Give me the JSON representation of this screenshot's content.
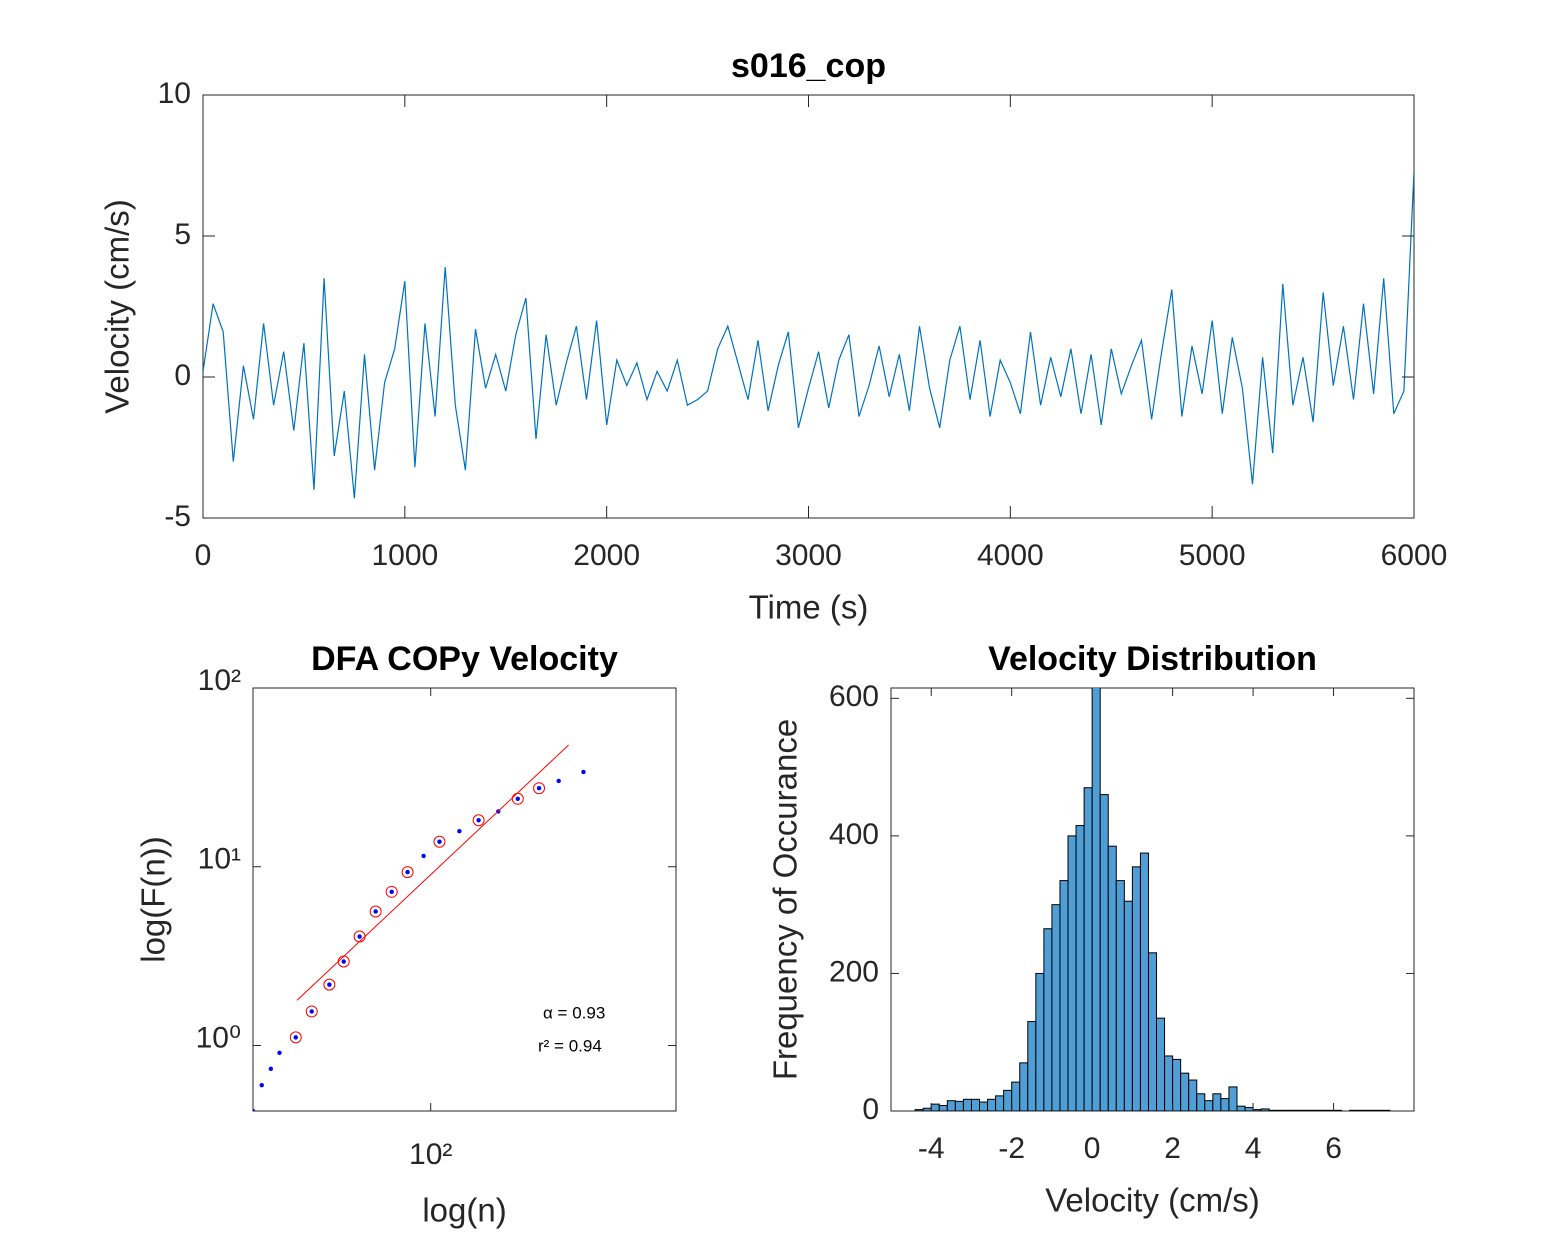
{
  "chart_data": [
    {
      "type": "line",
      "title": "s016_cop",
      "xlabel": "Time (s)",
      "ylabel": "Velocity (cm/s)",
      "color": "#0072bd",
      "xlim": [
        0,
        6000
      ],
      "ylim": [
        -5,
        10
      ],
      "xticks": [
        0,
        1000,
        2000,
        3000,
        4000,
        5000,
        6000
      ],
      "yticks": [
        -5,
        0,
        5,
        10
      ],
      "x": [
        0,
        50,
        100,
        150,
        200,
        250,
        300,
        350,
        400,
        450,
        500,
        550,
        600,
        650,
        700,
        750,
        800,
        850,
        900,
        950,
        1000,
        1050,
        1100,
        1150,
        1200,
        1250,
        1300,
        1350,
        1400,
        1450,
        1500,
        1550,
        1600,
        1650,
        1700,
        1750,
        1800,
        1850,
        1900,
        1950,
        2000,
        2050,
        2100,
        2150,
        2200,
        2250,
        2300,
        2350,
        2400,
        2450,
        2500,
        2550,
        2600,
        2650,
        2700,
        2750,
        2800,
        2850,
        2900,
        2950,
        3000,
        3050,
        3100,
        3150,
        3200,
        3250,
        3300,
        3350,
        3400,
        3450,
        3500,
        3550,
        3600,
        3650,
        3700,
        3750,
        3800,
        3850,
        3900,
        3950,
        4000,
        4050,
        4100,
        4150,
        4200,
        4250,
        4300,
        4350,
        4400,
        4450,
        4500,
        4550,
        4600,
        4650,
        4700,
        4750,
        4800,
        4850,
        4900,
        4950,
        5000,
        5050,
        5100,
        5150,
        5200,
        5250,
        5300,
        5350,
        5400,
        5450,
        5500,
        5550,
        5600,
        5650,
        5700,
        5750,
        5800,
        5850,
        5900,
        5950,
        6000
      ],
      "values": [
        0.2,
        2.6,
        1.6,
        -3.0,
        0.4,
        -1.5,
        1.9,
        -1.0,
        0.9,
        -1.9,
        1.2,
        -4.0,
        3.5,
        -2.8,
        -0.5,
        -4.3,
        0.8,
        -3.3,
        -0.2,
        1.0,
        3.4,
        -3.2,
        1.9,
        -1.4,
        3.9,
        -1.0,
        -3.3,
        1.7,
        -0.4,
        0.8,
        -0.5,
        1.5,
        2.8,
        -2.2,
        1.5,
        -1.0,
        0.5,
        1.8,
        -0.8,
        2.0,
        -1.7,
        0.6,
        -0.3,
        0.5,
        -0.8,
        0.2,
        -0.5,
        0.6,
        -1.0,
        -0.8,
        -0.5,
        1.0,
        1.8,
        0.5,
        -0.8,
        1.3,
        -1.2,
        0.4,
        1.6,
        -1.8,
        -0.4,
        0.9,
        -1.1,
        0.6,
        1.5,
        -1.4,
        -0.3,
        1.1,
        -0.7,
        0.8,
        -1.2,
        1.8,
        -0.4,
        -1.8,
        0.6,
        1.8,
        -0.8,
        1.3,
        -1.4,
        0.6,
        -0.2,
        -1.3,
        1.6,
        -1.0,
        0.7,
        -0.7,
        1.0,
        -1.3,
        0.8,
        -1.7,
        1.0,
        -0.6,
        0.4,
        1.3,
        -1.5,
        0.9,
        3.1,
        -1.4,
        1.1,
        -0.6,
        2.0,
        -1.3,
        1.4,
        -0.4,
        -3.8,
        0.7,
        -2.7,
        3.3,
        -1.0,
        0.7,
        -1.6,
        3.0,
        -0.3,
        1.8,
        -0.8,
        2.6,
        -0.6,
        3.5,
        -1.3,
        -0.5,
        7.3
      ]
    },
    {
      "type": "scatter",
      "title": "DFA COPy Velocity",
      "xlabel": "log(n)",
      "ylabel": "log(F(n))",
      "xscale": "log",
      "yscale": "log",
      "xlim": [
        10,
        2400
      ],
      "ylim": [
        0.43,
        100
      ],
      "xticks": [
        {
          "value": 100,
          "label": "10²"
        }
      ],
      "yticks": [
        {
          "value": 1,
          "label": "10⁰"
        },
        {
          "value": 10,
          "label": "10¹"
        },
        {
          "value": 100,
          "label": "10²"
        }
      ],
      "annotations": [
        "α = 0.93",
        "r² = 0.94"
      ],
      "series": [
        {
          "style": "dot",
          "color": "#0000ff",
          "x": [
            10,
            11.2,
            12.6,
            14.1,
            17.4,
            21.4,
            26.9,
            32.4,
            39.8,
            49,
            60.3,
            74.1,
            91.2,
            112,
            145,
            186,
            240,
            309,
            407,
            525,
            724
          ],
          "values": [
            0.43,
            0.6,
            0.74,
            0.91,
            1.11,
            1.55,
            2.19,
            2.95,
            4.07,
            5.62,
            7.24,
            9.33,
            11.5,
            13.8,
            15.8,
            18.2,
            20.4,
            24.0,
            27.5,
            30.2,
            33.9
          ]
        },
        {
          "style": "circle",
          "color": "#ff0000",
          "x": [
            17.4,
            21.4,
            26.9,
            32.4,
            39.8,
            49,
            60.3,
            74.1,
            112,
            186,
            309,
            407
          ],
          "values": [
            1.11,
            1.55,
            2.19,
            2.95,
            4.07,
            5.62,
            7.24,
            9.33,
            13.8,
            18.2,
            24.0,
            27.5
          ]
        },
        {
          "style": "line",
          "color": "#ff0000",
          "x": [
            17.7,
            596
          ],
          "values": [
            1.79,
            47.9
          ]
        }
      ]
    },
    {
      "type": "histogram",
      "title": "Velocity Distribution",
      "xlabel": "Velocity (cm/s)",
      "ylabel": "Frequency of Occurance",
      "color": "#4f9fd6",
      "xlim": [
        -5,
        8
      ],
      "ylim": [
        0,
        615
      ],
      "xticks": [
        -4,
        -2,
        0,
        2,
        4,
        6
      ],
      "yticks": [
        0,
        200,
        400,
        600
      ],
      "bins": [
        -4.4,
        -4.2,
        -4.0,
        -3.8,
        -3.6,
        -3.4,
        -3.2,
        -3.0,
        -2.8,
        -2.6,
        -2.4,
        -2.2,
        -2.0,
        -1.8,
        -1.6,
        -1.4,
        -1.2,
        -1.0,
        -0.8,
        -0.6,
        -0.4,
        -0.2,
        0,
        0.2,
        0.4,
        0.6,
        0.8,
        1.0,
        1.2,
        1.4,
        1.6,
        1.8,
        2.0,
        2.2,
        2.4,
        2.6,
        2.8,
        3.0,
        3.2,
        3.4,
        3.6,
        3.8,
        4.0,
        4.2,
        4.4,
        4.6,
        4.8,
        5.0,
        5.2,
        5.4,
        5.6,
        5.8,
        6.0,
        6.2,
        6.4,
        6.6,
        6.8,
        7.0,
        7.2,
        7.4
      ],
      "values": [
        2,
        4,
        10,
        8,
        15,
        14,
        17,
        17,
        13,
        17,
        22,
        30,
        42,
        70,
        130,
        200,
        265,
        300,
        335,
        400,
        415,
        470,
        620,
        460,
        385,
        335,
        305,
        355,
        375,
        230,
        135,
        80,
        75,
        55,
        45,
        25,
        15,
        25,
        18,
        35,
        7,
        5,
        2,
        3,
        1,
        1,
        1,
        1,
        1,
        1,
        1,
        1,
        1,
        0,
        1,
        1,
        1,
        1,
        1
      ]
    }
  ]
}
